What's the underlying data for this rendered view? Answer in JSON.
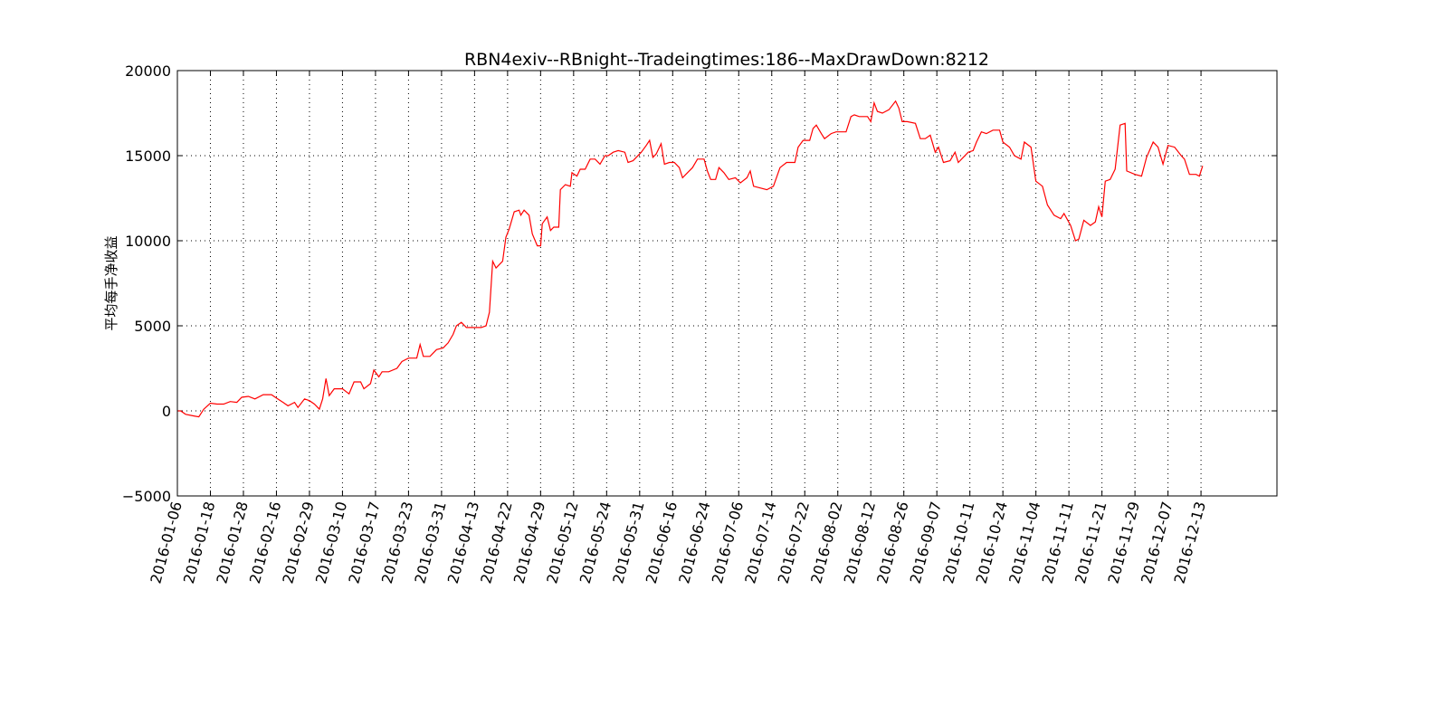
{
  "chart_data": {
    "type": "line",
    "title": "RBN4exiv--RBnight--Tradeingtimes:186--MaxDrawDown:8212",
    "ylabel": "平均每手净收益",
    "x": [
      0,
      2,
      5,
      10,
      13,
      16,
      20,
      24,
      28,
      32,
      36,
      39,
      43,
      47,
      52,
      57,
      60,
      64,
      67,
      71,
      73,
      77,
      80,
      83,
      86,
      88,
      90,
      92,
      95,
      100,
      104,
      107,
      111,
      113,
      117,
      119,
      122,
      124,
      128,
      133,
      136,
      140,
      145,
      147,
      149,
      153,
      157,
      161,
      164,
      167,
      169,
      172,
      175,
      180,
      184,
      187,
      189,
      191,
      193,
      196,
      197,
      199,
      201,
      204,
      207,
      208,
      210,
      213,
      215,
      218,
      220,
      221,
      224,
      226,
      228,
      231,
      232,
      235,
      238,
      239,
      242,
      244,
      247,
      250,
      253,
      256,
      259,
      261,
      264,
      267,
      271,
      273,
      276,
      281,
      284,
      286,
      288,
      290,
      293,
      295,
      298,
      301,
      304,
      306,
      309,
      312,
      315,
      319,
      321,
      323,
      326,
      328,
      331,
      334,
      338,
      341,
      345,
      347,
      349,
      353,
      357,
      361,
      365,
      369,
      374,
      376,
      379,
      383,
      385,
      387,
      390,
      392,
      396,
      399,
      405,
      408,
      410,
      413,
      418,
      420,
      422,
      424,
      427,
      431,
      435,
      437,
      439,
      442,
      447,
      450,
      453,
      456,
      459,
      461,
      464,
      468,
      471,
      473,
      479,
      482,
      484,
      487,
      490,
      494,
      498,
      500,
      504,
      507,
      511,
      513,
      517,
      520,
      524,
      527,
      531,
      535,
      537,
      541,
      544,
      546,
      549,
      553,
      556,
      558,
      560,
      562,
      565,
      568,
      571,
      574,
      575,
      580,
      584,
      587,
      591,
      594,
      597,
      600,
      604,
      608,
      610,
      613,
      617,
      619,
      621
    ],
    "series": [
      {
        "color": "#ff0000",
        "values": [
          0,
          0,
          -200,
          -300,
          -350,
          100,
          450,
          400,
          400,
          550,
          500,
          800,
          850,
          700,
          950,
          950,
          750,
          500,
          300,
          500,
          200,
          700,
          600,
          400,
          100,
          700,
          1900,
          900,
          1300,
          1300,
          1000,
          1700,
          1700,
          1300,
          1600,
          2400,
          2000,
          2300,
          2300,
          2500,
          2900,
          3100,
          3100,
          3900,
          3200,
          3200,
          3600,
          3700,
          4000,
          4500,
          5000,
          5200,
          4900,
          4900,
          4900,
          5000,
          5800,
          8800,
          8400,
          8700,
          8800,
          10200,
          10700,
          11700,
          11800,
          11500,
          11800,
          11500,
          10400,
          9700,
          9700,
          11000,
          11400,
          10600,
          10800,
          10800,
          13000,
          13300,
          13200,
          14000,
          13800,
          14200,
          14200,
          14800,
          14800,
          14500,
          15000,
          15000,
          15200,
          15300,
          15200,
          14600,
          14700,
          15200,
          15600,
          15900,
          14900,
          15100,
          15700,
          14500,
          14600,
          14600,
          14300,
          13700,
          14000,
          14300,
          14800,
          14800,
          14100,
          13600,
          13600,
          14300,
          14000,
          13600,
          13700,
          13400,
          13700,
          14100,
          13200,
          13100,
          13000,
          13200,
          14300,
          14600,
          14600,
          15500,
          15900,
          15900,
          16600,
          16800,
          16300,
          16000,
          16300,
          16400,
          16400,
          17300,
          17400,
          17300,
          17300,
          17000,
          18100,
          17600,
          17500,
          17700,
          18200,
          17800,
          17000,
          17000,
          16900,
          16000,
          16000,
          16200,
          15200,
          15500,
          14600,
          14700,
          15200,
          14600,
          15200,
          15300,
          15800,
          16400,
          16300,
          16500,
          16500,
          15800,
          15500,
          15000,
          14800,
          15800,
          15500,
          13500,
          13200,
          12100,
          11500,
          11300,
          11600,
          10900,
          10000,
          10100,
          11200,
          10900,
          11100,
          12000,
          11400,
          13500,
          13600,
          14200,
          16800,
          16900,
          14100,
          13900,
          13800,
          14900,
          15800,
          15500,
          14500,
          15600,
          15500,
          15000,
          14800,
          13900,
          13900,
          13800,
          14400
        ]
      }
    ],
    "xlim": [
      0,
      666
    ],
    "xticks": [
      {
        "value": 0,
        "label": "2016-01-06"
      },
      {
        "value": 20,
        "label": "2016-01-18"
      },
      {
        "value": 40,
        "label": "2016-01-28"
      },
      {
        "value": 60,
        "label": "2016-02-16"
      },
      {
        "value": 80,
        "label": "2016-02-29"
      },
      {
        "value": 100,
        "label": "2016-03-10"
      },
      {
        "value": 120,
        "label": "2016-03-17"
      },
      {
        "value": 140,
        "label": "2016-03-23"
      },
      {
        "value": 160,
        "label": "2016-03-31"
      },
      {
        "value": 180,
        "label": "2016-04-13"
      },
      {
        "value": 200,
        "label": "2016-04-22"
      },
      {
        "value": 220,
        "label": "2016-04-29"
      },
      {
        "value": 240,
        "label": "2016-05-12"
      },
      {
        "value": 260,
        "label": "2016-05-24"
      },
      {
        "value": 280,
        "label": "2016-05-31"
      },
      {
        "value": 300,
        "label": "2016-06-16"
      },
      {
        "value": 320,
        "label": "2016-06-24"
      },
      {
        "value": 340,
        "label": "2016-07-06"
      },
      {
        "value": 360,
        "label": "2016-07-14"
      },
      {
        "value": 380,
        "label": "2016-07-22"
      },
      {
        "value": 400,
        "label": "2016-08-02"
      },
      {
        "value": 420,
        "label": "2016-08-12"
      },
      {
        "value": 440,
        "label": "2016-08-26"
      },
      {
        "value": 460,
        "label": "2016-09-07"
      },
      {
        "value": 480,
        "label": "2016-10-11"
      },
      {
        "value": 500,
        "label": "2016-10-24"
      },
      {
        "value": 520,
        "label": "2016-11-04"
      },
      {
        "value": 540,
        "label": "2016-11-11"
      },
      {
        "value": 560,
        "label": "2016-11-21"
      },
      {
        "value": 580,
        "label": "2016-11-29"
      },
      {
        "value": 600,
        "label": "2016-12-07"
      },
      {
        "value": 620,
        "label": "2016-12-13"
      }
    ],
    "ylim": [
      -5000,
      20000
    ],
    "yticks": [
      {
        "value": -5000,
        "label": "−5000"
      },
      0,
      5000,
      10000,
      15000,
      20000
    ],
    "grid": true
  }
}
